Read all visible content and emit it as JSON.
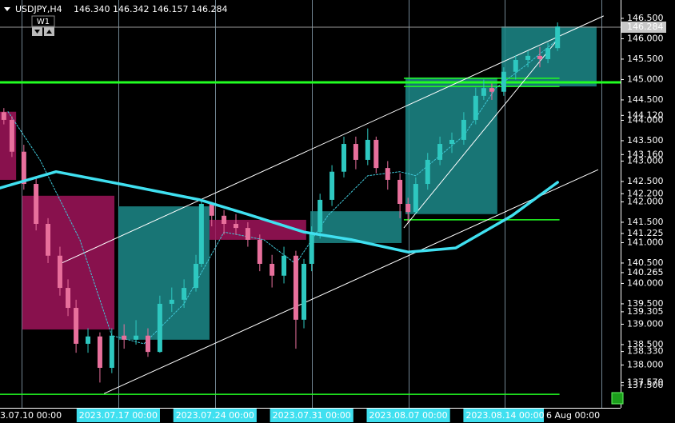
{
  "header": {
    "symbol": "USDJPY,H4",
    "quote": "146.340 146.342 146.157 146.284",
    "button": "W1"
  },
  "chart_data": {
    "type": "candlestick",
    "xlim": [
      -6.7,
      185.86
    ],
    "ylim": [
      136.95,
      146.95
    ],
    "xticks": [
      {
        "value": 0,
        "label": "3.07.10 00:00"
      },
      {
        "value": 30,
        "label": "2023.07.17 00:00"
      },
      {
        "value": 60,
        "label": "2023.07.24 00:00"
      },
      {
        "value": 90,
        "label": "2023.07.31 00:00"
      },
      {
        "value": 120,
        "label": "2023.08.07 00:00"
      },
      {
        "value": 150,
        "label": "2023.08.14 00:00"
      }
    ],
    "vgrid": [
      0,
      30,
      60,
      90,
      120,
      150,
      180
    ],
    "cursor_label": "6 Aug 00:00",
    "yticks": [
      {
        "value": 146.5,
        "label": "146.500"
      },
      {
        "value": 146,
        "label": "146.000"
      },
      {
        "value": 145.5,
        "label": "145.500"
      },
      {
        "value": 145,
        "label": "145.000"
      },
      {
        "value": 144.5,
        "label": "144.500"
      },
      {
        "value": 144,
        "label": "144.000"
      },
      {
        "value": 143.5,
        "label": "143.500"
      },
      {
        "value": 143,
        "label": "143.000"
      },
      {
        "value": 142.5,
        "label": "142.500"
      },
      {
        "value": 142,
        "label": "142.000"
      },
      {
        "value": 141.5,
        "label": "141.500"
      },
      {
        "value": 141,
        "label": "141.000"
      },
      {
        "value": 140.5,
        "label": "140.500"
      },
      {
        "value": 140,
        "label": "140.000"
      },
      {
        "value": 139.5,
        "label": "139.500"
      },
      {
        "value": 139,
        "label": "139.000"
      },
      {
        "value": 138.5,
        "label": "138.500"
      },
      {
        "value": 138,
        "label": "138.000"
      },
      {
        "value": 137.5,
        "label": "137.500"
      }
    ],
    "level_labels": [
      {
        "value": 144.12,
        "label": "144.120"
      },
      {
        "value": 143.16,
        "label": "143.160"
      },
      {
        "value": 142.2,
        "label": "142.200"
      },
      {
        "value": 141.225,
        "label": "141.225"
      },
      {
        "value": 140.265,
        "label": "140.265"
      },
      {
        "value": 139.305,
        "label": "139.305"
      },
      {
        "value": 138.33,
        "label": "138.330"
      },
      {
        "value": 137.57,
        "label": "137.570"
      }
    ],
    "price_label": {
      "value": 146.284,
      "label": "146.284"
    },
    "candles": {
      "up_color": "#2ec8c0",
      "down_color": "#e8709c",
      "x": [
        -5.5,
        -3,
        0.7,
        4.5,
        8.2,
        11.9,
        14.4,
        16.9,
        20.6,
        24.3,
        28,
        31.8,
        35.5,
        39.2,
        42.9,
        46.6,
        50.4,
        54.1,
        55.8,
        59,
        62.8,
        66.5,
        70.2,
        73.9,
        77.7,
        81.4,
        85.1,
        87.6,
        90,
        92.6,
        96.3,
        100,
        103.7,
        107.4,
        110,
        113.6,
        117.4,
        119.9,
        122.3,
        126,
        129.8,
        133.5,
        137.2,
        140.9,
        143.4,
        145.9,
        149.6,
        153.3,
        157.1,
        160.8,
        163.3,
        166.3
      ],
      "open": [
        144.2,
        144.01,
        143.23,
        142.44,
        141.46,
        140.68,
        139.89,
        139.4,
        138.52,
        138.7,
        137.93,
        138.72,
        138.62,
        138.72,
        138.32,
        139.5,
        139.6,
        139.89,
        140.48,
        141.95,
        141.66,
        141.46,
        141.36,
        141.07,
        140.48,
        140.19,
        140.68,
        139.11,
        140.48,
        141.26,
        142.05,
        142.74,
        143.42,
        143.03,
        143.52,
        142.83,
        142.54,
        141.95,
        141.75,
        142.44,
        143.03,
        143.42,
        143.52,
        144.01,
        144.6,
        144.79,
        144.7,
        145.19,
        145.48,
        145.58,
        145.5,
        145.77
      ],
      "high": [
        144.3,
        144.1,
        143.4,
        142.6,
        141.6,
        140.9,
        140.1,
        139.6,
        138.9,
        138.8,
        138.9,
        139.0,
        139.1,
        138.9,
        139.7,
        139.9,
        140.1,
        140.7,
        142.05,
        142.0,
        141.8,
        141.7,
        141.5,
        141.2,
        140.7,
        140.9,
        140.8,
        140.6,
        141.4,
        142.2,
        142.9,
        143.6,
        143.6,
        143.8,
        143.6,
        143.0,
        142.7,
        142.1,
        142.6,
        143.2,
        143.6,
        143.7,
        144.2,
        144.8,
        145.0,
        144.9,
        145.3,
        145.6,
        145.7,
        145.8,
        145.9,
        146.4
      ],
      "low": [
        143.9,
        143.1,
        142.3,
        141.3,
        140.5,
        139.7,
        139.2,
        138.3,
        138.3,
        137.57,
        137.8,
        138.4,
        138.5,
        138.2,
        138.3,
        139.3,
        139.4,
        139.8,
        140.4,
        141.4,
        141.2,
        141.2,
        140.9,
        140.3,
        139.9,
        140.0,
        138.4,
        138.9,
        140.3,
        141.1,
        141.9,
        142.6,
        142.8,
        142.9,
        142.7,
        142.3,
        141.6,
        141.5,
        141.7,
        142.3,
        142.9,
        143.2,
        143.4,
        143.9,
        144.5,
        144.5,
        144.6,
        145.0,
        145.3,
        145.3,
        145.4,
        145.7
      ],
      "close": [
        144.01,
        143.23,
        142.44,
        141.46,
        140.68,
        139.89,
        139.4,
        138.52,
        138.7,
        137.93,
        138.72,
        138.62,
        138.72,
        138.32,
        139.5,
        139.6,
        139.89,
        140.48,
        141.95,
        141.66,
        141.46,
        141.36,
        141.07,
        140.48,
        140.19,
        140.68,
        139.11,
        140.48,
        141.26,
        142.05,
        142.74,
        143.42,
        143.03,
        143.52,
        142.83,
        142.54,
        141.95,
        141.75,
        142.44,
        143.03,
        143.42,
        143.52,
        144.01,
        144.6,
        144.79,
        144.7,
        145.19,
        145.48,
        145.58,
        145.5,
        145.77,
        146.3
      ]
    },
    "ma": {
      "color": "#40e0f0",
      "x": [
        -6.7,
        10.7,
        30.5,
        55.3,
        70,
        87.6,
        102.5,
        119.9,
        134.7,
        152.1,
        166.3
      ],
      "values": [
        142.34,
        142.74,
        142.44,
        142.05,
        141.7,
        141.26,
        141.07,
        140.77,
        140.87,
        141.66,
        142.48
      ]
    },
    "signal": {
      "color": "#40c8d8",
      "x": [
        -4.2,
        5.7,
        18.1,
        28,
        38,
        50.4,
        62.8,
        75.2,
        85.1,
        95,
        107.4,
        117.4,
        122.3,
        137.2,
        147.1,
        157.1,
        166.3
      ],
      "values": [
        144.21,
        143.03,
        141.07,
        138.72,
        138.52,
        139.5,
        141.26,
        141.07,
        140.48,
        141.66,
        142.64,
        142.74,
        142.64,
        143.62,
        144.79,
        145.39,
        145.98
      ]
    },
    "zones": [
      {
        "color": "#a0145a",
        "x": [
          -6.7,
          -1.7
        ],
        "values": [
          144.21,
          142.54
        ]
      },
      {
        "color": "#a0145a",
        "x": [
          0.2,
          28.8
        ],
        "values": [
          142.15,
          138.87
        ]
      },
      {
        "color": "#1c8a8a",
        "x": [
          30,
          58.3
        ],
        "values": [
          141.89,
          138.62
        ]
      },
      {
        "color": "#a0145a",
        "x": [
          58.3,
          88.3
        ],
        "values": [
          141.56,
          141.07
        ]
      },
      {
        "color": "#1c8a8a",
        "x": [
          89.6,
          117.9
        ],
        "values": [
          141.77,
          140.99
        ]
      },
      {
        "color": "#1c8a8a",
        "x": [
          119.1,
          147.6
        ],
        "values": [
          145.05,
          141.7
        ]
      },
      {
        "color": "#1c8a8a",
        "x": [
          148.9,
          178.4
        ],
        "values": [
          146.3,
          144.83
        ]
      }
    ],
    "trendlines": [
      {
        "color": "#ffffff",
        "x": [
          11.9,
          180.6
        ],
        "values": [
          140.48,
          146.56
        ]
      },
      {
        "color": "#ffffff",
        "x": [
          25.6,
          178.9
        ],
        "values": [
          137.3,
          142.79
        ]
      },
      {
        "color": "#ffffff",
        "x": [
          118.6,
          165.8
        ],
        "values": [
          141.36,
          145.93
        ]
      }
    ],
    "hlines": [
      {
        "color": "#22ff22",
        "x": [
          -6.7,
          185.86
        ],
        "values": [
          144.93
        ]
      },
      {
        "color": "#22ff22",
        "x": [
          118.6,
          166.9
        ],
        "values": [
          145.03
        ]
      },
      {
        "color": "#22ff22",
        "x": [
          118.6,
          166.9
        ],
        "values": [
          144.83
        ]
      },
      {
        "color": "#22ff22",
        "x": [
          118.6,
          166.9
        ],
        "values": [
          141.56
        ]
      },
      {
        "color": "#22ff22",
        "x": [
          -6.7,
          166.9
        ],
        "values": [
          137.28
        ]
      }
    ]
  }
}
